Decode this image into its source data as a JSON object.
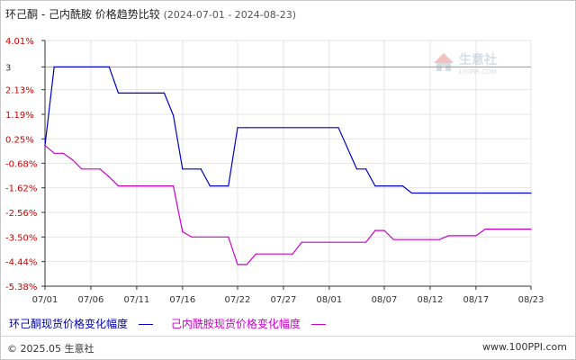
{
  "title": "环己酮 - 己内酰胺 价格趋势比较",
  "subtitle": "(2024-07-01 - 2024-08-23)",
  "watermark": {
    "name": "生意社",
    "site": "100PPI.COM"
  },
  "footer": {
    "copyright": "© 2025.05 生意社",
    "site": "www.100PPI.com"
  },
  "colors": {
    "series1": "#0000cc",
    "series2": "#cc00cc",
    "axis_red": "#cc0000",
    "axis_dark": "#333333",
    "grid": "#e6e6e6",
    "refline": "#999999"
  },
  "chart_data": {
    "type": "line",
    "x_ticks": [
      "07/01",
      "07/06",
      "07/11",
      "07/16",
      "07/22",
      "07/27",
      "08/01",
      "08/07",
      "08/12",
      "08/17",
      "08/23"
    ],
    "y_ticks": [
      {
        "label": "4.01%",
        "value": 4.01,
        "color": "red"
      },
      {
        "label": "3",
        "value": 3.0,
        "color": "dark"
      },
      {
        "label": "2.13%",
        "value": 2.13,
        "color": "red"
      },
      {
        "label": "1.19%",
        "value": 1.19,
        "color": "red"
      },
      {
        "label": "0.25%",
        "value": 0.25,
        "color": "red"
      },
      {
        "label": "-0.68%",
        "value": -0.68,
        "color": "red"
      },
      {
        "label": "-1.62%",
        "value": -1.62,
        "color": "red"
      },
      {
        "label": "-2.56%",
        "value": -2.56,
        "color": "red"
      },
      {
        "label": "-3.50%",
        "value": -3.5,
        "color": "red"
      },
      {
        "label": "-4.44%",
        "value": -4.44,
        "color": "red"
      },
      {
        "label": "-5.38%",
        "value": -5.38,
        "color": "red"
      }
    ],
    "ylim": [
      -5.38,
      4.01
    ],
    "reference_line": 3.0,
    "series": [
      {
        "name": "环己酮现货价格变化幅度",
        "color": "#0000cc",
        "points": [
          [
            "07/01",
            0.0
          ],
          [
            "07/02",
            3.0
          ],
          [
            "07/08",
            3.0
          ],
          [
            "07/09",
            2.0
          ],
          [
            "07/14",
            2.0
          ],
          [
            "07/15",
            1.15
          ],
          [
            "07/16",
            -0.9
          ],
          [
            "07/18",
            -0.9
          ],
          [
            "07/19",
            -1.55
          ],
          [
            "07/21",
            -1.55
          ],
          [
            "07/22",
            0.68
          ],
          [
            "07/23",
            0.68
          ],
          [
            "08/02",
            0.68
          ],
          [
            "08/04",
            -0.9
          ],
          [
            "08/05",
            -0.9
          ],
          [
            "08/06",
            -1.55
          ],
          [
            "08/09",
            -1.55
          ],
          [
            "08/10",
            -1.82
          ],
          [
            "08/23",
            -1.82
          ]
        ]
      },
      {
        "name": "己内酰胺现货价格变化幅度",
        "color": "#cc00cc",
        "points": [
          [
            "07/01",
            0.0
          ],
          [
            "07/02",
            -0.3
          ],
          [
            "07/03",
            -0.3
          ],
          [
            "07/04",
            -0.55
          ],
          [
            "07/05",
            -0.9
          ],
          [
            "07/07",
            -0.9
          ],
          [
            "07/08",
            -1.2
          ],
          [
            "07/09",
            -1.55
          ],
          [
            "07/15",
            -1.55
          ],
          [
            "07/16",
            -3.3
          ],
          [
            "07/17",
            -3.5
          ],
          [
            "07/21",
            -3.5
          ],
          [
            "07/22",
            -4.55
          ],
          [
            "07/23",
            -4.55
          ],
          [
            "07/24",
            -4.15
          ],
          [
            "07/28",
            -4.15
          ],
          [
            "07/29",
            -3.7
          ],
          [
            "08/05",
            -3.7
          ],
          [
            "08/06",
            -3.25
          ],
          [
            "08/07",
            -3.25
          ],
          [
            "08/08",
            -3.6
          ],
          [
            "08/13",
            -3.6
          ],
          [
            "08/14",
            -3.45
          ],
          [
            "08/17",
            -3.45
          ],
          [
            "08/18",
            -3.2
          ],
          [
            "08/23",
            -3.2
          ]
        ]
      }
    ]
  }
}
